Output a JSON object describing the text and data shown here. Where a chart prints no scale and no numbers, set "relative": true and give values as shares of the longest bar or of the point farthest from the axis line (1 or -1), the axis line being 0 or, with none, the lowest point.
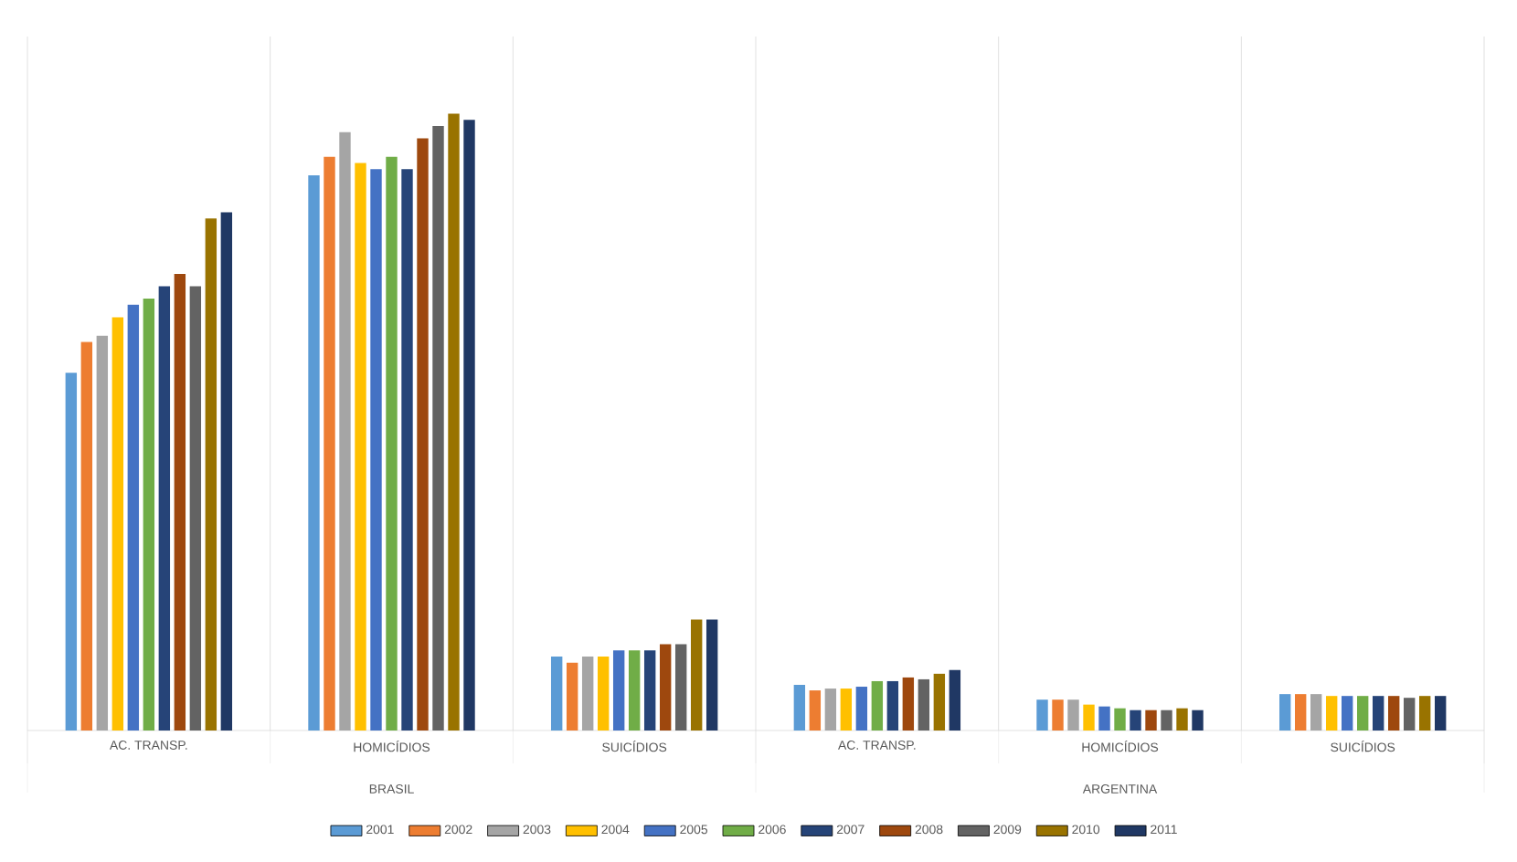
{
  "chart_data": {
    "type": "bar",
    "relative": true,
    "grid": "x",
    "legend": "bottom",
    "categories": [
      "AC. TRANSP.",
      "HOMICÍDIOS",
      "SUICÍDIOS",
      "AC. TRANSP.",
      "HOMICÍDIOS",
      "SUICÍDIOS"
    ],
    "annotations": [
      "BRASIL",
      "ARGENTINA"
    ],
    "series": [
      {
        "name": "2001",
        "color": "#5b9bd5",
        "values": [
          0.58,
          0.9,
          0.12,
          0.074,
          0.05,
          0.059
        ]
      },
      {
        "name": "2002",
        "color": "#ed7d31",
        "values": [
          0.63,
          0.93,
          0.11,
          0.065,
          0.05,
          0.059
        ]
      },
      {
        "name": "2003",
        "color": "#a5a5a5",
        "values": [
          0.64,
          0.97,
          0.12,
          0.068,
          0.05,
          0.059
        ]
      },
      {
        "name": "2004",
        "color": "#ffc000",
        "values": [
          0.67,
          0.92,
          0.12,
          0.068,
          0.042,
          0.056
        ]
      },
      {
        "name": "2005",
        "color": "#4472c4",
        "values": [
          0.69,
          0.91,
          0.13,
          0.071,
          0.039,
          0.056
        ]
      },
      {
        "name": "2006",
        "color": "#70ad47",
        "values": [
          0.7,
          0.93,
          0.13,
          0.08,
          0.036,
          0.056
        ]
      },
      {
        "name": "2007",
        "color": "#264478",
        "values": [
          0.72,
          0.91,
          0.13,
          0.08,
          0.033,
          0.056
        ]
      },
      {
        "name": "2008",
        "color": "#9e480e",
        "values": [
          0.74,
          0.96,
          0.14,
          0.086,
          0.033,
          0.056
        ]
      },
      {
        "name": "2009",
        "color": "#636363",
        "values": [
          0.72,
          0.98,
          0.14,
          0.083,
          0.033,
          0.053
        ]
      },
      {
        "name": "2010",
        "color": "#997300",
        "values": [
          0.83,
          1.0,
          0.18,
          0.092,
          0.036,
          0.056
        ]
      },
      {
        "name": "2011",
        "color": "#203864",
        "values": [
          0.84,
          0.99,
          0.18,
          0.098,
          0.033,
          0.056
        ]
      }
    ]
  }
}
